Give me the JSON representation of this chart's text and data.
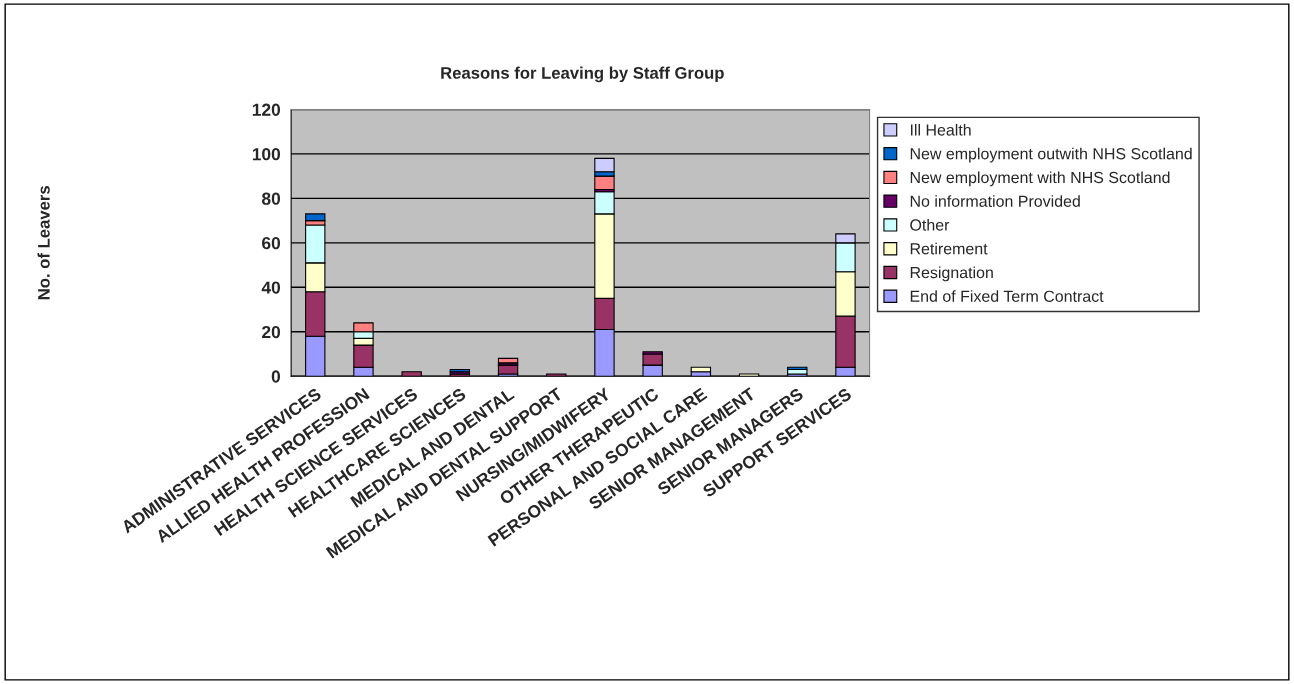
{
  "chart_data": {
    "type": "bar",
    "stacked": true,
    "title": "Reasons for Leaving by Staff Group",
    "ylabel": "No. of Leavers",
    "categories": [
      "ADMINISTRATIVE SERVICES",
      "ALLIED HEALTH PROFESSION",
      "HEALTH SCIENCE SERVICES",
      "HEALTHCARE SCIENCES",
      "MEDICAL AND DENTAL",
      "MEDICAL AND DENTAL SUPPORT",
      "NURSING/MIDWIFERY",
      "OTHER THERAPEUTIC",
      "PERSONAL AND SOCIAL CARE",
      "SENIOR MANAGEMENT",
      "SENIOR MANAGERS",
      "SUPPORT SERVICES"
    ],
    "series": [
      {
        "name": "End of Fixed Term Contract",
        "color": "#9999ff",
        "values": [
          18,
          4,
          0,
          0,
          1,
          0,
          21,
          5,
          2,
          0,
          1,
          4
        ]
      },
      {
        "name": "Resignation",
        "color": "#993366",
        "values": [
          20,
          10,
          2,
          1,
          4,
          1,
          14,
          5,
          0,
          0,
          0,
          23
        ]
      },
      {
        "name": "Retirement",
        "color": "#ffffcc",
        "values": [
          13,
          3,
          0,
          0,
          0,
          0,
          38,
          0,
          2,
          1,
          0,
          20
        ]
      },
      {
        "name": "Other",
        "color": "#ccffff",
        "values": [
          17,
          3,
          0,
          0,
          0,
          0,
          10,
          0,
          0,
          0,
          2,
          13
        ]
      },
      {
        "name": "No information Provided",
        "color": "#660066",
        "values": [
          0,
          0,
          0,
          1,
          1,
          0,
          1,
          1,
          0,
          0,
          0,
          0
        ]
      },
      {
        "name": "New employment with NHS Scotland",
        "color": "#ff8080",
        "values": [
          2,
          4,
          0,
          0,
          2,
          0,
          6,
          0,
          0,
          0,
          0,
          0
        ]
      },
      {
        "name": "New employment outwith NHS Scotland",
        "color": "#0066cc",
        "values": [
          3,
          0,
          0,
          1,
          0,
          0,
          2,
          0,
          0,
          0,
          1,
          0
        ]
      },
      {
        "name": "Ill Health",
        "color": "#ccccff",
        "values": [
          0,
          0,
          0,
          0,
          0,
          0,
          6,
          0,
          0,
          0,
          0,
          4
        ]
      }
    ],
    "ylim": [
      0,
      120
    ],
    "yticks": [
      0,
      20,
      40,
      60,
      80,
      100,
      120
    ],
    "grid": "y",
    "legend": "right"
  }
}
